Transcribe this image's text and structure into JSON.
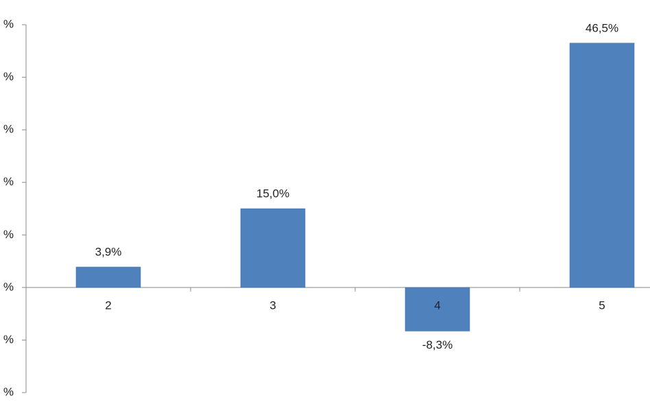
{
  "chart_data": {
    "type": "bar",
    "categories": [
      "2",
      "3",
      "4",
      "5"
    ],
    "values": [
      3.9,
      15.0,
      -8.3,
      46.5
    ],
    "value_labels": [
      "3,9%",
      "15,0%",
      "-8,3%",
      "46,5%"
    ],
    "color": "#4f81bd",
    "ylim": [
      -20,
      50
    ],
    "yticks": [
      {
        "value": -20,
        "label": "%"
      },
      {
        "value": -10,
        "label": "%"
      },
      {
        "value": 0,
        "label": "%"
      },
      {
        "value": 10,
        "label": "%"
      },
      {
        "value": 20,
        "label": "%"
      },
      {
        "value": 30,
        "label": "%"
      },
      {
        "value": 40,
        "label": "%"
      },
      {
        "value": 50,
        "label": "%"
      }
    ]
  }
}
